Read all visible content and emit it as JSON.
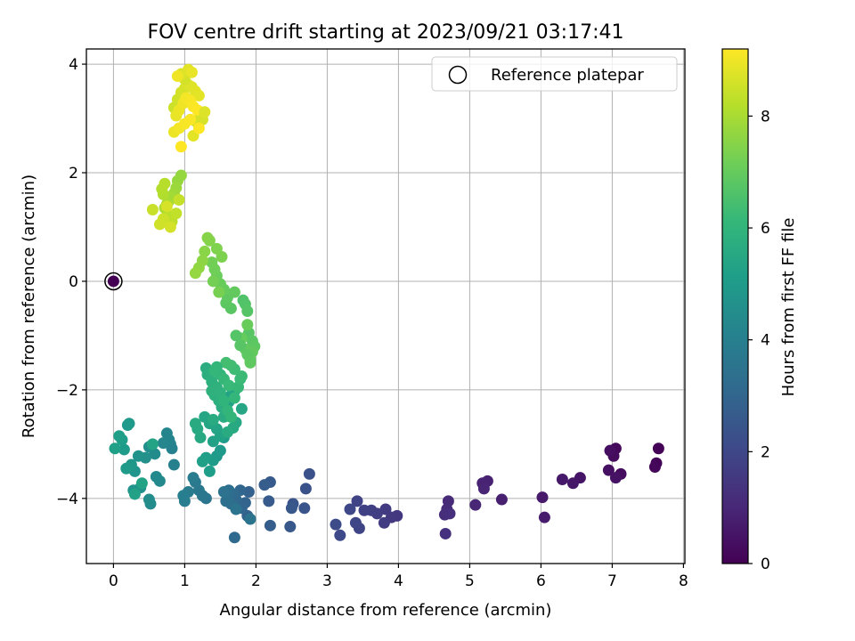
{
  "chart_data": {
    "type": "scatter",
    "title": "FOV centre drift starting at 2023/09/21 03:17:41",
    "xlabel": "Angular distance from reference (arcmin)",
    "ylabel": "Rotation from reference (arcmin)",
    "xlim": [
      -0.38,
      8.02
    ],
    "ylim": [
      -5.2,
      4.28
    ],
    "xticks": [
      0,
      1,
      2,
      3,
      4,
      5,
      6,
      7,
      8
    ],
    "yticks": [
      -4,
      -2,
      0,
      2,
      4
    ],
    "xtick_labels": [
      "0",
      "1",
      "2",
      "3",
      "4",
      "5",
      "6",
      "7",
      "8"
    ],
    "ytick_labels": [
      "−4",
      "−2",
      "0",
      "2",
      "4"
    ],
    "grid": true,
    "legend": {
      "placement": "top-right",
      "entries": [
        "Reference platepar"
      ]
    },
    "reference_point": {
      "x": 0,
      "y": 0,
      "c": 0
    },
    "colorbar": {
      "label": "Hours from first FF file",
      "range": [
        0,
        9.2
      ],
      "ticks": [
        0,
        2,
        4,
        6,
        8
      ],
      "tick_labels": [
        "0",
        "2",
        "4",
        "6",
        "8"
      ],
      "colormap": "viridis",
      "colormap_stops": [
        "#440154",
        "#482878",
        "#3e4989",
        "#31688e",
        "#26828e",
        "#1f9e89",
        "#35b779",
        "#6ece58",
        "#b5de2b",
        "#fde725"
      ]
    },
    "series": [
      {
        "x": [
          0,
          7.65,
          7.62,
          7.6,
          7.05,
          7.02,
          7.12,
          6.97,
          6.95,
          7.05,
          6.55,
          6.45,
          6.3,
          6.02,
          6.05,
          5.45,
          5.25,
          5.18,
          5.2,
          5.08,
          4.7,
          4.68,
          4.65,
          4.72,
          4.66,
          3.98,
          3.9,
          3.82,
          3.8,
          3.7,
          3.62,
          3.52,
          3.42,
          3.45,
          3.4,
          3.32,
          3.18,
          3.12,
          2.75,
          2.7,
          2.68,
          2.52,
          2.5,
          2.48,
          2.2,
          2.18,
          2.12,
          2.2,
          1.9,
          1.88,
          1.85,
          1.8,
          1.78,
          1.72,
          1.7,
          1.68,
          1.65,
          1.62,
          1.6,
          1.58,
          1.55,
          1.72,
          1.92,
          1.3,
          1.25,
          1.2,
          1.15,
          1.12,
          1.05,
          1.0,
          0.98,
          0.85,
          0.82,
          0.8,
          0.78,
          0.75,
          0.7,
          0.65,
          0.6,
          0.58,
          0.52,
          0.5,
          0.5,
          0.45,
          0.38,
          0.35,
          0.3,
          0.28,
          0.25,
          0.22,
          0.2,
          0.18,
          0.15,
          0.12,
          0.08,
          0.02,
          0.3,
          0.4,
          0.55,
          1.45,
          1.5,
          1.55,
          1.4,
          1.35,
          1.3,
          1.25,
          1.4,
          1.5,
          1.45,
          1.35,
          1.28,
          1.22,
          1.18,
          1.15,
          1.6,
          1.62,
          1.65,
          1.7,
          1.75,
          1.8,
          1.72,
          1.68,
          1.6,
          1.55,
          1.52,
          1.48,
          1.42,
          1.38,
          1.3,
          1.32,
          1.38,
          1.45,
          1.5,
          1.55,
          1.6,
          1.65,
          1.7,
          1.75,
          1.78,
          1.8,
          1.7,
          1.65,
          1.58,
          1.5,
          1.45,
          1.42,
          1.55,
          1.62,
          1.4,
          1.82,
          1.85,
          1.88,
          1.9,
          1.95,
          1.98,
          1.92,
          1.85,
          1.8,
          1.88,
          1.95,
          1.72,
          1.78,
          1.88,
          1.92,
          1.65,
          1.58,
          1.6,
          1.7,
          1.55,
          1.5,
          1.45,
          1.42,
          1.38,
          1.4,
          1.48,
          1.52,
          1.45,
          1.35,
          1.32,
          1.28,
          1.25,
          1.2,
          1.15,
          0.95,
          0.9,
          0.88,
          0.85,
          0.8,
          0.78,
          0.75,
          0.72,
          0.7,
          0.68,
          0.72,
          0.78,
          0.82,
          0.88,
          0.92,
          0.55,
          0.7,
          0.65,
          0.8,
          0.75,
          0.85,
          0.9,
          0.95,
          1.0,
          1.05,
          1.1,
          1.15,
          1.2,
          0.88,
          0.92,
          0.98,
          1.02,
          1.08,
          1.12,
          1.18,
          1.0,
          0.95,
          1.05,
          1.1,
          0.9,
          1.15,
          1.25,
          1.28,
          1.12,
          0.85,
          0.92,
          1.0,
          1.08,
          1.2,
          0.95
        ],
        "y": [
          0,
          -3.08,
          -3.35,
          -3.42,
          -3.08,
          -3.22,
          -3.55,
          -3.12,
          -3.48,
          -3.62,
          -3.62,
          -3.72,
          -3.65,
          -3.98,
          -4.35,
          -4.02,
          -3.68,
          -3.72,
          -3.82,
          -4.12,
          -4.05,
          -4.2,
          -4.3,
          -4.28,
          -4.65,
          -4.32,
          -4.35,
          -4.2,
          -4.45,
          -4.28,
          -4.22,
          -4.22,
          -4.05,
          -4.55,
          -4.45,
          -4.2,
          -4.68,
          -4.48,
          -3.55,
          -3.82,
          -4.18,
          -4.1,
          -4.18,
          -4.52,
          -3.7,
          -4.05,
          -3.75,
          -4.5,
          -3.88,
          -4.32,
          -4.08,
          -4.18,
          -3.85,
          -4.02,
          -4.72,
          -3.92,
          -4.1,
          -3.85,
          -4.0,
          -4.05,
          -3.88,
          -4.2,
          -4.38,
          -4.0,
          -3.95,
          -3.85,
          -3.7,
          -3.62,
          -3.88,
          -4.05,
          -3.95,
          -3.38,
          -3.08,
          -3.0,
          -2.92,
          -2.8,
          -2.98,
          -3.68,
          -3.6,
          -3.18,
          -4.1,
          -4.02,
          -3.05,
          -3.25,
          -3.8,
          -3.22,
          -3.5,
          -3.85,
          -3.38,
          -2.62,
          -2.65,
          -3.45,
          -3.1,
          -2.92,
          -2.85,
          -3.08,
          -3.92,
          -3.72,
          -3.0,
          -3.22,
          -3.12,
          -2.88,
          -3.3,
          -3.5,
          -3.25,
          -3.32,
          -2.95,
          -2.85,
          -2.72,
          -2.62,
          -2.5,
          -2.88,
          -2.72,
          -2.62,
          -2.48,
          -2.22,
          -2.1,
          -2.02,
          -1.95,
          -2.35,
          -2.6,
          -2.7,
          -2.78,
          -2.5,
          -2.32,
          -2.2,
          -2.1,
          -2.02,
          -1.6,
          -1.72,
          -1.85,
          -1.95,
          -2.05,
          -2.2,
          -2.38,
          -2.5,
          -2.15,
          -1.95,
          -1.8,
          -1.75,
          -1.62,
          -1.55,
          -1.5,
          -1.72,
          -1.58,
          -1.65,
          -1.8,
          -1.92,
          -2.55,
          -0.35,
          -0.42,
          -0.55,
          -0.95,
          -1.1,
          -1.2,
          -1.45,
          -1.25,
          -1.05,
          -0.8,
          -1.3,
          -1.0,
          -1.18,
          -1.35,
          -1.5,
          -0.5,
          -0.4,
          -0.3,
          -0.2,
          -0.15,
          -0.05,
          0.1,
          0.22,
          0.35,
          0.0,
          -0.2,
          0.45,
          0.6,
          0.75,
          0.8,
          0.55,
          0.38,
          0.25,
          0.15,
          1.95,
          1.85,
          1.72,
          1.62,
          1.55,
          1.48,
          1.42,
          1.35,
          1.6,
          1.7,
          1.8,
          1.2,
          1.1,
          1.25,
          1.5,
          1.32,
          1.15,
          1.05,
          1.0,
          1.38,
          3.2,
          3.35,
          3.48,
          3.55,
          3.62,
          3.58,
          3.5,
          3.42,
          3.05,
          3.15,
          3.28,
          3.38,
          3.32,
          3.22,
          3.15,
          3.72,
          3.82,
          3.9,
          3.85,
          3.78,
          2.95,
          2.98,
          3.12,
          2.68,
          2.75,
          2.82,
          2.9,
          2.98,
          2.82,
          2.48
        ],
        "c": [
          0.0,
          0.05,
          0.1,
          0.15,
          0.2,
          0.25,
          0.3,
          0.35,
          0.4,
          0.45,
          0.5,
          0.55,
          0.6,
          0.65,
          0.7,
          0.8,
          0.85,
          0.9,
          0.95,
          1.0,
          1.1,
          1.15,
          1.2,
          1.25,
          1.3,
          1.5,
          1.55,
          1.6,
          1.65,
          1.7,
          1.75,
          1.8,
          1.85,
          1.9,
          1.95,
          2.0,
          2.05,
          2.1,
          2.3,
          2.35,
          2.4,
          2.45,
          2.5,
          2.55,
          2.6,
          2.65,
          2.7,
          2.75,
          2.85,
          2.9,
          2.95,
          3.0,
          3.05,
          3.1,
          3.15,
          3.2,
          3.25,
          3.3,
          3.35,
          3.4,
          3.45,
          3.5,
          3.55,
          3.6,
          3.65,
          3.7,
          3.75,
          3.8,
          3.85,
          3.9,
          3.95,
          4.0,
          4.05,
          4.1,
          4.15,
          4.2,
          4.25,
          4.3,
          4.35,
          4.4,
          4.45,
          4.5,
          4.55,
          4.6,
          4.65,
          4.7,
          4.75,
          4.8,
          4.85,
          4.9,
          4.95,
          5.0,
          5.05,
          5.1,
          5.15,
          5.2,
          5.25,
          5.3,
          5.35,
          4.9,
          4.95,
          5.0,
          5.05,
          5.1,
          5.15,
          5.2,
          5.25,
          5.3,
          5.35,
          5.4,
          5.45,
          5.5,
          5.55,
          5.6,
          5.2,
          5.25,
          5.3,
          5.35,
          5.4,
          5.45,
          5.5,
          5.55,
          5.6,
          5.65,
          5.7,
          5.75,
          5.8,
          5.85,
          5.7,
          5.75,
          5.8,
          5.85,
          5.9,
          5.95,
          6.0,
          6.05,
          6.1,
          6.15,
          6.2,
          6.25,
          6.3,
          6.35,
          6.4,
          6.0,
          6.05,
          6.1,
          6.15,
          6.2,
          5.6,
          6.6,
          6.65,
          6.7,
          6.75,
          6.8,
          6.85,
          6.9,
          6.95,
          7.0,
          7.05,
          6.95,
          6.7,
          6.75,
          6.85,
          6.9,
          6.8,
          6.85,
          6.9,
          6.95,
          7.0,
          7.05,
          7.1,
          7.15,
          7.2,
          7.25,
          7.3,
          7.35,
          7.4,
          7.45,
          7.5,
          7.55,
          7.6,
          7.65,
          7.7,
          7.7,
          7.75,
          7.8,
          7.85,
          7.9,
          7.95,
          8.0,
          8.05,
          8.1,
          8.15,
          8.2,
          8.25,
          8.3,
          8.35,
          8.4,
          8.45,
          8.5,
          8.55,
          8.6,
          8.65,
          8.5,
          8.55,
          8.6,
          8.65,
          8.7,
          8.75,
          8.8,
          8.85,
          8.9,
          8.95,
          9.0,
          9.05,
          9.1,
          9.15,
          9.2,
          8.6,
          8.7,
          8.8,
          8.9,
          9.0,
          8.55,
          8.65,
          8.75,
          8.85,
          8.95,
          9.05,
          9.1,
          9.15,
          9.2,
          9.2
        ]
      }
    ]
  }
}
